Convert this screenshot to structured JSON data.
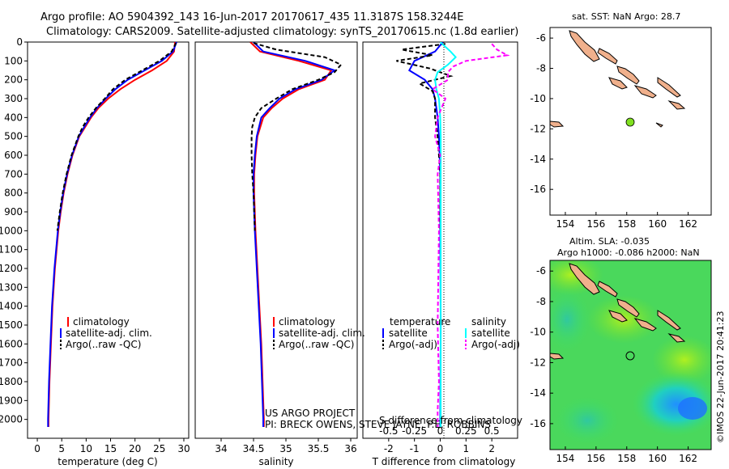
{
  "header": {
    "line1": "Argo profile: AO 5904392_143 16-Jun-2017 20170617_435 11.3187S 158.3244E",
    "line2": "Climatology: CARS2009. Satellite-adjusted climatology: synTS_20170615.nc (1.8d earlier)"
  },
  "colors": {
    "climatology": "#ff0000",
    "satellite": "#0000ff",
    "argo": "#000000",
    "sal_satellite": "#00ffff",
    "sal_argo": "#ff00ff"
  },
  "chart_data": [
    {
      "id": "temperature",
      "type": "line",
      "xlabel": "temperature (deg C)",
      "xlim": [
        -2,
        31
      ],
      "ylim": [
        2100,
        0
      ],
      "xticks": [
        0,
        5,
        10,
        15,
        20,
        25,
        30
      ],
      "yticks": [
        0,
        100,
        200,
        300,
        400,
        500,
        600,
        700,
        800,
        900,
        1000,
        1100,
        1200,
        1300,
        1400,
        1500,
        1600,
        1700,
        1800,
        1900,
        2000
      ],
      "legend": [
        "climatology",
        "satellite-adj. clim.",
        "Argo(..raw -QC)"
      ],
      "series": [
        {
          "name": "climatology",
          "color": "#ff0000",
          "depth": [
            0,
            50,
            100,
            150,
            200,
            250,
            300,
            350,
            400,
            450,
            500,
            600,
            700,
            800,
            900,
            1000,
            1200,
            1400,
            1600,
            1800,
            2000,
            2040
          ],
          "values": [
            28.2,
            28.0,
            26.5,
            23.5,
            20.0,
            17.0,
            14.5,
            12.5,
            11.0,
            9.8,
            8.6,
            7.2,
            6.2,
            5.4,
            4.8,
            4.3,
            3.6,
            3.1,
            2.8,
            2.5,
            2.3,
            2.3
          ]
        },
        {
          "name": "satellite-adj. clim.",
          "color": "#0000ff",
          "depth": [
            0,
            50,
            100,
            150,
            200,
            250,
            300,
            350,
            400,
            450,
            500,
            600,
            700,
            800,
            900,
            1000,
            1200,
            1400,
            1600,
            1800,
            2000,
            2040
          ],
          "values": [
            28.5,
            27.8,
            25.5,
            22.0,
            18.5,
            16.0,
            14.0,
            12.2,
            10.8,
            9.6,
            8.5,
            7.1,
            6.1,
            5.3,
            4.7,
            4.2,
            3.5,
            3.0,
            2.7,
            2.4,
            2.2,
            2.2
          ]
        },
        {
          "name": "Argo(..raw -QC)",
          "color": "#000000",
          "depth": [
            5,
            50,
            100,
            150,
            200,
            250,
            300,
            350,
            400,
            450,
            500,
            600,
            700,
            800,
            900,
            1000
          ],
          "values": [
            28.4,
            27.5,
            25.0,
            21.5,
            18.0,
            15.5,
            13.8,
            12.0,
            10.5,
            9.3,
            8.4,
            7.0,
            6.0,
            5.2,
            4.6,
            4.1
          ]
        }
      ]
    },
    {
      "id": "salinity",
      "type": "line",
      "xlabel": "salinity",
      "xlim": [
        33.6,
        36.1
      ],
      "ylim": [
        2100,
        0
      ],
      "xticks": [
        34,
        34.5,
        35,
        35.5,
        36
      ],
      "legend": [
        "climatology",
        "satellite-adj. clim.",
        "Argo(..raw -QC)"
      ],
      "series": [
        {
          "name": "climatology",
          "color": "#ff0000",
          "depth": [
            0,
            50,
            100,
            150,
            200,
            250,
            300,
            350,
            400,
            500,
            600,
            700,
            800,
            900,
            1000,
            1200,
            1400,
            1600,
            1800,
            2000,
            2040
          ],
          "values": [
            34.45,
            34.6,
            35.2,
            35.7,
            35.6,
            35.2,
            34.95,
            34.78,
            34.65,
            34.56,
            34.53,
            34.51,
            34.51,
            34.52,
            34.53,
            34.56,
            34.59,
            34.62,
            34.64,
            34.66,
            34.66
          ]
        },
        {
          "name": "satellite-adj. clim.",
          "color": "#0000ff",
          "depth": [
            0,
            50,
            100,
            150,
            200,
            250,
            300,
            350,
            400,
            500,
            600,
            700,
            800,
            900,
            1000,
            1200,
            1400,
            1600,
            1800,
            2000,
            2040
          ],
          "values": [
            34.5,
            34.65,
            35.3,
            35.75,
            35.55,
            35.15,
            34.9,
            34.75,
            34.62,
            34.55,
            34.52,
            34.5,
            34.5,
            34.51,
            34.52,
            34.55,
            34.58,
            34.61,
            34.63,
            34.65,
            34.65
          ]
        },
        {
          "name": "Argo(..raw -QC)",
          "color": "#000000",
          "depth": [
            5,
            40,
            80,
            120,
            160,
            200,
            250,
            300,
            350,
            400,
            450,
            500,
            600,
            700,
            800,
            900,
            1000
          ],
          "values": [
            34.5,
            34.85,
            35.6,
            35.85,
            35.75,
            35.5,
            35.1,
            34.85,
            34.62,
            34.52,
            34.48,
            34.47,
            34.47,
            34.48,
            34.5,
            34.51,
            34.52
          ]
        }
      ]
    },
    {
      "id": "difference",
      "type": "line",
      "xlabel": "T difference from climatology",
      "xlabel2": "S difference from climatology",
      "xlim": [
        -3,
        3
      ],
      "ylim": [
        2100,
        0
      ],
      "xticks": [
        -2,
        -1,
        0,
        1,
        2
      ],
      "xticks_s": [
        "-0.5",
        "-0.25",
        "0",
        "0.25",
        "0.5"
      ],
      "legend_temperature": "temperature",
      "legend_salinity": "salinity",
      "legend": [
        "satellite",
        "Argo(-adj)",
        "satellite",
        "Argo(-adj)"
      ],
      "series": [
        {
          "name": "T satellite",
          "color": "#0000ff",
          "depth": [
            0,
            50,
            100,
            150,
            200,
            250,
            300,
            400,
            500,
            700,
            1000,
            1500,
            2040
          ],
          "values": [
            0.1,
            -0.2,
            -1.0,
            -1.2,
            -0.6,
            -0.3,
            -0.2,
            -0.1,
            -0.05,
            0.0,
            0.0,
            0.02,
            0.0
          ]
        },
        {
          "name": "T Argo(-adj)",
          "color": "#000000",
          "depth": [
            10,
            40,
            70,
            100,
            140,
            180,
            220,
            260,
            300,
            400,
            500,
            700,
            900,
            1000
          ],
          "values": [
            0.2,
            -1.5,
            -0.3,
            -1.7,
            -0.4,
            0.4,
            -0.8,
            -0.3,
            -0.2,
            -0.2,
            -0.1,
            0.0,
            0.0,
            0.0
          ]
        },
        {
          "name": "S satellite",
          "color": "#00ffff",
          "depth": [
            0,
            50,
            80,
            120,
            160,
            200,
            250,
            300,
            400,
            500,
            700,
            1000,
            1500,
            2040
          ],
          "values": [
            0.0,
            0.4,
            0.6,
            0.3,
            -0.1,
            -0.2,
            -0.15,
            -0.05,
            0.0,
            0.02,
            0.02,
            0.02,
            0.02,
            0.02
          ]
        },
        {
          "name": "S Argo(-adj)",
          "color": "#ff00ff",
          "depth": [
            10,
            40,
            70,
            100,
            130,
            160,
            200,
            250,
            300,
            400,
            500,
            600,
            700,
            1000,
            1500,
            1800,
            1950,
            2040
          ],
          "values": [
            2.0,
            2.2,
            2.6,
            1.0,
            0.5,
            0.3,
            0.3,
            -0.3,
            0.2,
            -0.1,
            -0.2,
            0.0,
            -0.1,
            -0.05,
            -0.1,
            -0.05,
            -0.1,
            -0.1
          ]
        }
      ]
    },
    {
      "id": "sst-map",
      "type": "scatter",
      "title": "sat. SST: NaN Argo: 28.7",
      "xlim": [
        153,
        163.5
      ],
      "ylim": [
        -17.7,
        -5.3
      ],
      "xticks": [
        154,
        156,
        158,
        160,
        162
      ],
      "yticks": [
        -6,
        -8,
        -10,
        -12,
        -14,
        -16
      ],
      "point": {
        "lon": 158.3244,
        "lat": -11.3187,
        "color": "#80e020"
      }
    },
    {
      "id": "sla-map",
      "type": "heatmap",
      "title1": "Altim. SLA: -0.035",
      "title2": "Argo h1000: -0.086 h2000: NaN",
      "xlim": [
        153,
        163.5
      ],
      "ylim": [
        -17.7,
        -5.3
      ],
      "xticks": [
        154,
        156,
        158,
        160,
        162
      ],
      "yticks": [
        -6,
        -8,
        -10,
        -12,
        -14,
        -16
      ],
      "point": {
        "lon": 158.3244,
        "lat": -11.3187
      }
    }
  ],
  "credit": "©IMOS 22-Jun-2017 20:41:23",
  "project_text": {
    "line1": "US ARGO PROJECT",
    "line2": "PI: BRECK OWENS, STEVE JAYNE, P.E. ROBBINS"
  }
}
